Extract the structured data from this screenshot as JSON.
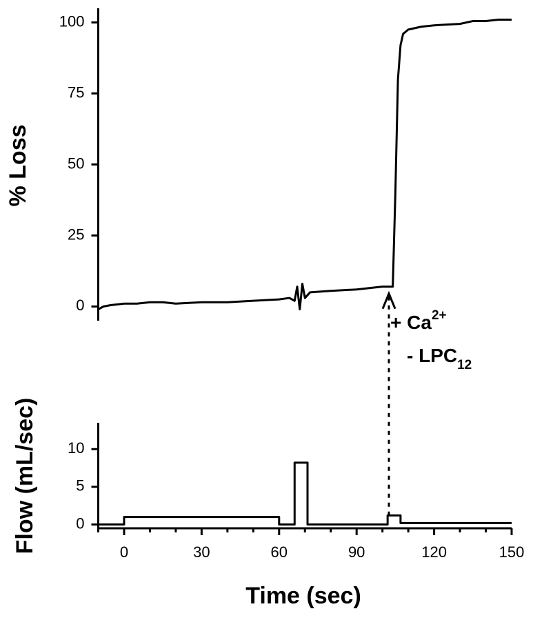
{
  "chart_data": [
    {
      "type": "line",
      "ylabel": "% Loss",
      "color": "#000000",
      "x": [
        -10,
        -8,
        -5,
        0,
        5,
        10,
        15,
        20,
        30,
        40,
        50,
        60,
        64,
        66,
        67,
        68,
        69,
        70,
        72,
        80,
        90,
        100,
        104,
        105,
        106,
        107,
        108,
        110,
        115,
        120,
        130,
        135,
        140,
        145,
        150
      ],
      "values": [
        -1,
        0,
        0.5,
        1,
        1,
        1.5,
        1.5,
        1,
        1.5,
        1.5,
        2,
        2.5,
        3,
        2,
        7,
        -1,
        8,
        3,
        5,
        5.5,
        6,
        7,
        7,
        40,
        80,
        92,
        96,
        97.5,
        98.5,
        99,
        99.5,
        100.5,
        100.5,
        101,
        101
      ],
      "xlim": [
        -10,
        150
      ],
      "ylim": [
        -5,
        105
      ],
      "yticks": [
        0,
        25,
        50,
        75,
        100
      ],
      "annotation": {
        "line1": "+ Ca",
        "line1_sup": "2+",
        "line2": "-  LPC",
        "line2_sub": "12",
        "arrow_x": 102.5,
        "arrow_y": 6
      }
    },
    {
      "type": "line",
      "ylabel": "Flow (mL/sec)",
      "xlabel": "Time (sec)",
      "color": "#000000",
      "x": [
        -10,
        0,
        0,
        60,
        60,
        66,
        66,
        71,
        71,
        102,
        102,
        107,
        107,
        150
      ],
      "values": [
        0,
        0,
        1,
        1,
        0,
        0,
        8.2,
        8.2,
        0,
        0,
        1.2,
        1.2,
        0.2,
        0.2
      ],
      "xlim": [
        -10,
        150
      ],
      "ylim": [
        -0.5,
        13.5
      ],
      "yticks": [
        0,
        5,
        10
      ],
      "xticks": [
        0,
        30,
        60,
        90,
        120,
        150
      ],
      "xminorticks": [
        -10,
        10,
        20,
        40,
        50,
        70,
        80,
        100,
        110,
        130,
        140
      ]
    }
  ]
}
